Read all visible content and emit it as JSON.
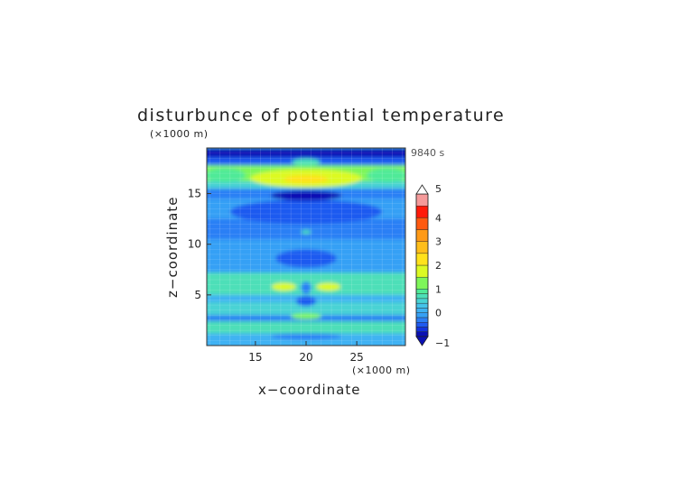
{
  "chart_data": {
    "type": "heatmap",
    "title": "disturbunce of potential temperature",
    "time_label": "9840 s",
    "xlabel": "x−coordinate",
    "ylabel": "z−coordinate",
    "x_unit": "(×1000 m)",
    "y_unit": "(×1000 m)",
    "xlim": [
      10.2,
      29.8
    ],
    "ylim": [
      0,
      19.5
    ],
    "x_ticks": [
      15,
      20,
      25
    ],
    "y_ticks": [
      5,
      10,
      15
    ],
    "grid": true,
    "colorbar": {
      "min": -1,
      "max": 5,
      "tick_values": [
        -1,
        0,
        1,
        2,
        3,
        4,
        5
      ],
      "tick_labels": [
        "−1",
        "0",
        "1",
        "2",
        "3",
        "4",
        "5"
      ],
      "levels": [
        {
          "from": -1.0,
          "to": -0.8,
          "color": "#0a10b4"
        },
        {
          "from": -0.8,
          "to": -0.6,
          "color": "#1233de"
        },
        {
          "from": -0.6,
          "to": -0.4,
          "color": "#1f5af0"
        },
        {
          "from": -0.4,
          "to": -0.2,
          "color": "#2c7ff5"
        },
        {
          "from": -0.2,
          "to": 0.0,
          "color": "#36a0f5"
        },
        {
          "from": 0.0,
          "to": 0.2,
          "color": "#3fb2f3"
        },
        {
          "from": 0.2,
          "to": 0.4,
          "color": "#45c3ea"
        },
        {
          "from": 0.4,
          "to": 0.6,
          "color": "#49d3d4"
        },
        {
          "from": 0.6,
          "to": 0.8,
          "color": "#4ddfb8"
        },
        {
          "from": 0.8,
          "to": 1.0,
          "color": "#50ea98"
        },
        {
          "from": 1.0,
          "to": 1.5,
          "color": "#7ef65a"
        },
        {
          "from": 1.5,
          "to": 2.0,
          "color": "#dcfa23"
        },
        {
          "from": 2.0,
          "to": 2.5,
          "color": "#ffe21c"
        },
        {
          "from": 2.5,
          "to": 3.0,
          "color": "#ffbe1a"
        },
        {
          "from": 3.0,
          "to": 3.5,
          "color": "#ff9a17"
        },
        {
          "from": 3.5,
          "to": 4.0,
          "color": "#ff5a10"
        },
        {
          "from": 4.0,
          "to": 4.5,
          "color": "#ff1a0a"
        },
        {
          "from": 4.5,
          "to": 5.0,
          "color": "#f59a9a"
        }
      ]
    },
    "bands": [
      {
        "z0": 0.0,
        "z1": 1.2,
        "value": 0.1
      },
      {
        "z0": 1.2,
        "z1": 2.4,
        "value": 0.6
      },
      {
        "z0": 2.4,
        "z1": 3.0,
        "value": -0.3
      },
      {
        "z0": 3.0,
        "z1": 4.3,
        "value": 0.5
      },
      {
        "z0": 4.3,
        "z1": 5.0,
        "value": 0.1
      },
      {
        "z0": 5.0,
        "z1": 7.2,
        "value": 0.7
      },
      {
        "z0": 7.2,
        "z1": 10.5,
        "value": -0.1
      },
      {
        "z0": 10.5,
        "z1": 12.5,
        "value": -0.3
      },
      {
        "z0": 12.5,
        "z1": 14.5,
        "value": -0.1
      },
      {
        "z0": 14.5,
        "z1": 15.5,
        "value": -0.4
      },
      {
        "z0": 15.5,
        "z1": 16.2,
        "value": 0.5
      },
      {
        "z0": 16.2,
        "z1": 17.8,
        "value": 1.3
      },
      {
        "z0": 17.8,
        "z1": 18.6,
        "value": -0.5
      },
      {
        "z0": 18.6,
        "z1": 19.5,
        "value": -0.9
      }
    ],
    "blobs": [
      {
        "x": 20.0,
        "z": 16.5,
        "rx": 5.5,
        "rz": 0.9,
        "value": 1.6
      },
      {
        "x": 20.0,
        "z": 16.4,
        "rx": 2.2,
        "rz": 0.4,
        "value": 2.3
      },
      {
        "x": 20.0,
        "z": 18.1,
        "rx": 1.4,
        "rz": 0.35,
        "value": 0.6
      },
      {
        "x": 20.0,
        "z": 13.2,
        "rx": 7.5,
        "rz": 1.2,
        "value": -0.6
      },
      {
        "x": 20.0,
        "z": 14.8,
        "rx": 3.5,
        "rz": 0.5,
        "value": -0.9
      },
      {
        "x": 12.0,
        "z": 16.8,
        "rx": 2.0,
        "rz": 0.7,
        "value": 0.9
      },
      {
        "x": 28.0,
        "z": 16.8,
        "rx": 2.0,
        "rz": 0.7,
        "value": 0.9
      },
      {
        "x": 17.8,
        "z": 5.8,
        "rx": 1.2,
        "rz": 0.4,
        "value": 1.6
      },
      {
        "x": 22.2,
        "z": 5.8,
        "rx": 1.2,
        "rz": 0.4,
        "value": 1.6
      },
      {
        "x": 20.0,
        "z": 5.7,
        "rx": 0.5,
        "rz": 0.6,
        "value": -0.4
      },
      {
        "x": 20.0,
        "z": 4.4,
        "rx": 1.0,
        "rz": 0.5,
        "value": -0.6
      },
      {
        "x": 20.0,
        "z": 11.2,
        "rx": 0.5,
        "rz": 0.2,
        "value": 0.7
      },
      {
        "x": 20.0,
        "z": 8.6,
        "rx": 3.0,
        "rz": 0.9,
        "value": -0.5
      },
      {
        "x": 20.0,
        "z": 2.9,
        "rx": 1.5,
        "rz": 0.3,
        "value": 1.4
      },
      {
        "x": 20.0,
        "z": 0.9,
        "rx": 3.5,
        "rz": 0.3,
        "value": -0.4
      }
    ]
  }
}
